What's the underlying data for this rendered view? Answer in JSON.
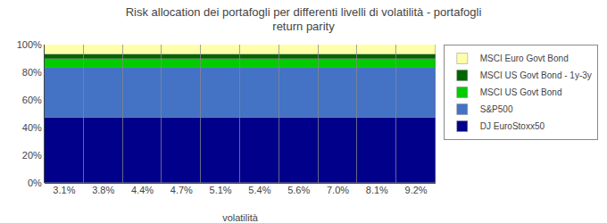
{
  "chart_data": {
    "type": "bar",
    "stacked": true,
    "title": "Risk allocation dei portafogli per differenti livelli di volatilità - portafogli\nreturn parity",
    "xlabel": "volatilità",
    "categories": [
      "3.1%",
      "3.8%",
      "4.4%",
      "4.7%",
      "5.1%",
      "5.4%",
      "5.6%",
      "7.0%",
      "8.1%",
      "9.2%"
    ],
    "series": [
      {
        "name": "DJ EuroStoxx50",
        "color": "#00008B",
        "values": [
          47,
          47,
          47,
          47,
          47,
          47,
          47,
          47,
          47,
          47
        ]
      },
      {
        "name": "S&P500",
        "color": "#4472C4",
        "values": [
          36,
          36,
          36,
          36,
          36,
          36,
          36,
          36,
          36,
          36
        ]
      },
      {
        "name": "MSCI US Govt Bond",
        "color": "#00CC00",
        "values": [
          7,
          7,
          7,
          7,
          7,
          7,
          7,
          7,
          7,
          7
        ]
      },
      {
        "name": "MSCI US Govt Bond - 1y-3y",
        "color": "#006400",
        "values": [
          3,
          3,
          3,
          3,
          3,
          3,
          3,
          3,
          3,
          3
        ]
      },
      {
        "name": "MSCI Euro Govt Bond",
        "color": "#FFFFAA",
        "values": [
          7,
          7,
          7,
          7,
          7,
          7,
          7,
          7,
          7,
          7
        ]
      }
    ],
    "ylim": [
      0,
      100
    ],
    "yticks": [
      {
        "value": 0,
        "label": "0%"
      },
      {
        "value": 20,
        "label": "20%"
      },
      {
        "value": 40,
        "label": "40%"
      },
      {
        "value": 60,
        "label": "60%"
      },
      {
        "value": 80,
        "label": "80%"
      },
      {
        "value": 100,
        "label": "100%"
      }
    ],
    "grid": false,
    "legend": "right"
  }
}
